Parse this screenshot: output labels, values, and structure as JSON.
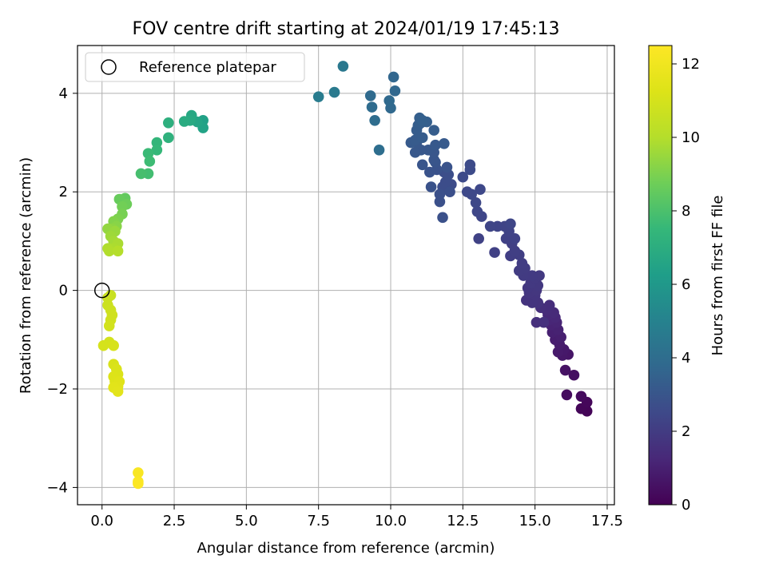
{
  "chart_data": {
    "type": "scatter",
    "title": "FOV centre drift starting at 2024/01/19 17:45:13",
    "xlabel": "Angular distance from reference (arcmin)",
    "ylabel": "Rotation from reference (arcmin)",
    "xlim": [
      -0.85,
      17.75
    ],
    "ylim": [
      -4.35,
      4.97
    ],
    "xticks": [
      0.0,
      2.5,
      5.0,
      7.5,
      10.0,
      12.5,
      15.0,
      17.5
    ],
    "xtick_labels": [
      "0.0",
      "2.5",
      "5.0",
      "7.5",
      "10.0",
      "12.5",
      "15.0",
      "17.5"
    ],
    "yticks": [
      -4,
      -2,
      0,
      2,
      4
    ],
    "ytick_labels": [
      "−4",
      "−2",
      "0",
      "2",
      "4"
    ],
    "grid": true,
    "legend": {
      "position": "top-left",
      "entries": [
        "Reference platepar"
      ]
    },
    "reference_point": {
      "x": 0.0,
      "y": 0.0
    },
    "colorbar": {
      "label": "Hours from first FF file",
      "colormap": "viridis",
      "range": [
        0,
        12.5
      ],
      "ticks": [
        0,
        2,
        4,
        6,
        8,
        10,
        12
      ],
      "tick_labels": [
        "0",
        "2",
        "4",
        "6",
        "8",
        "10",
        "12"
      ]
    },
    "points": [
      {
        "x": 16.8,
        "y": -2.45,
        "c": 0.1
      },
      {
        "x": 16.6,
        "y": -2.4,
        "c": 0.15
      },
      {
        "x": 16.8,
        "y": -2.27,
        "c": 0.2
      },
      {
        "x": 16.6,
        "y": -2.15,
        "c": 0.3
      },
      {
        "x": 16.1,
        "y": -2.12,
        "c": 0.35
      },
      {
        "x": 16.35,
        "y": -1.72,
        "c": 0.45
      },
      {
        "x": 16.05,
        "y": -1.62,
        "c": 0.55
      },
      {
        "x": 16.15,
        "y": -1.3,
        "c": 0.65
      },
      {
        "x": 15.95,
        "y": -1.32,
        "c": 0.7
      },
      {
        "x": 16.0,
        "y": -1.2,
        "c": 0.75
      },
      {
        "x": 15.8,
        "y": -1.25,
        "c": 0.8
      },
      {
        "x": 15.85,
        "y": -1.1,
        "c": 0.85
      },
      {
        "x": 15.7,
        "y": -1.0,
        "c": 0.9
      },
      {
        "x": 15.9,
        "y": -0.95,
        "c": 0.95
      },
      {
        "x": 15.6,
        "y": -0.85,
        "c": 1.0
      },
      {
        "x": 15.8,
        "y": -0.8,
        "c": 1.05
      },
      {
        "x": 15.55,
        "y": -0.7,
        "c": 1.1
      },
      {
        "x": 15.75,
        "y": -0.65,
        "c": 1.15
      },
      {
        "x": 15.5,
        "y": -0.6,
        "c": 1.2
      },
      {
        "x": 15.7,
        "y": -0.55,
        "c": 1.25
      },
      {
        "x": 15.45,
        "y": -0.5,
        "c": 1.3
      },
      {
        "x": 15.65,
        "y": -0.45,
        "c": 1.35
      },
      {
        "x": 15.4,
        "y": -0.4,
        "c": 1.4
      },
      {
        "x": 15.5,
        "y": -0.3,
        "c": 1.45
      },
      {
        "x": 15.2,
        "y": -0.35,
        "c": 1.5
      },
      {
        "x": 15.05,
        "y": -0.65,
        "c": 1.55
      },
      {
        "x": 15.3,
        "y": -0.65,
        "c": 1.6
      },
      {
        "x": 15.1,
        "y": -0.25,
        "c": 1.65
      },
      {
        "x": 14.9,
        "y": -0.25,
        "c": 1.7
      },
      {
        "x": 14.7,
        "y": -0.2,
        "c": 1.72
      },
      {
        "x": 15.0,
        "y": -0.1,
        "c": 1.75
      },
      {
        "x": 14.8,
        "y": -0.05,
        "c": 1.78
      },
      {
        "x": 15.05,
        "y": 0.0,
        "c": 1.8
      },
      {
        "x": 14.75,
        "y": 0.05,
        "c": 1.82
      },
      {
        "x": 15.1,
        "y": 0.1,
        "c": 1.85
      },
      {
        "x": 14.85,
        "y": 0.15,
        "c": 1.88
      },
      {
        "x": 15.0,
        "y": 0.25,
        "c": 1.9
      },
      {
        "x": 15.15,
        "y": 0.3,
        "c": 1.92
      },
      {
        "x": 14.9,
        "y": 0.3,
        "c": 1.95
      },
      {
        "x": 14.6,
        "y": 0.3,
        "c": 1.97
      },
      {
        "x": 14.45,
        "y": 0.4,
        "c": 2.0
      },
      {
        "x": 14.65,
        "y": 0.45,
        "c": 2.02
      },
      {
        "x": 14.55,
        "y": 0.55,
        "c": 2.05
      },
      {
        "x": 14.45,
        "y": 0.72,
        "c": 2.08
      },
      {
        "x": 14.15,
        "y": 0.7,
        "c": 2.1
      },
      {
        "x": 14.3,
        "y": 0.8,
        "c": 2.12
      },
      {
        "x": 14.2,
        "y": 0.95,
        "c": 2.15
      },
      {
        "x": 13.6,
        "y": 0.77,
        "c": 2.18
      },
      {
        "x": 14.0,
        "y": 1.05,
        "c": 2.2
      },
      {
        "x": 13.05,
        "y": 1.05,
        "c": 2.22
      },
      {
        "x": 14.3,
        "y": 1.05,
        "c": 2.25
      },
      {
        "x": 14.1,
        "y": 1.2,
        "c": 2.28
      },
      {
        "x": 13.95,
        "y": 1.3,
        "c": 2.3
      },
      {
        "x": 13.7,
        "y": 1.3,
        "c": 2.32
      },
      {
        "x": 13.45,
        "y": 1.3,
        "c": 2.35
      },
      {
        "x": 14.15,
        "y": 1.35,
        "c": 2.38
      },
      {
        "x": 13.15,
        "y": 1.5,
        "c": 2.4
      },
      {
        "x": 13.0,
        "y": 1.6,
        "c": 2.42
      },
      {
        "x": 12.95,
        "y": 1.78,
        "c": 2.45
      },
      {
        "x": 13.1,
        "y": 2.05,
        "c": 2.48
      },
      {
        "x": 12.8,
        "y": 1.95,
        "c": 2.5
      },
      {
        "x": 12.65,
        "y": 2.0,
        "c": 2.52
      },
      {
        "x": 12.5,
        "y": 2.3,
        "c": 2.55
      },
      {
        "x": 12.75,
        "y": 2.45,
        "c": 2.58
      },
      {
        "x": 12.75,
        "y": 2.55,
        "c": 2.6
      },
      {
        "x": 12.1,
        "y": 2.15,
        "c": 2.62
      },
      {
        "x": 11.9,
        "y": 2.2,
        "c": 2.65
      },
      {
        "x": 11.8,
        "y": 2.1,
        "c": 2.68
      },
      {
        "x": 12.0,
        "y": 2.35,
        "c": 2.7
      },
      {
        "x": 11.85,
        "y": 2.4,
        "c": 2.72
      },
      {
        "x": 12.05,
        "y": 2.0,
        "c": 2.75
      },
      {
        "x": 11.7,
        "y": 1.95,
        "c": 2.78
      },
      {
        "x": 11.7,
        "y": 1.8,
        "c": 2.8
      },
      {
        "x": 11.8,
        "y": 1.48,
        "c": 2.82
      },
      {
        "x": 11.4,
        "y": 2.1,
        "c": 2.85
      },
      {
        "x": 11.6,
        "y": 2.45,
        "c": 2.88
      },
      {
        "x": 11.35,
        "y": 2.4,
        "c": 2.9
      },
      {
        "x": 11.95,
        "y": 2.5,
        "c": 2.92
      },
      {
        "x": 11.55,
        "y": 2.6,
        "c": 2.95
      },
      {
        "x": 11.1,
        "y": 2.55,
        "c": 2.98
      },
      {
        "x": 11.5,
        "y": 2.65,
        "c": 3.0
      },
      {
        "x": 11.5,
        "y": 2.8,
        "c": 3.02
      },
      {
        "x": 11.3,
        "y": 2.85,
        "c": 3.05
      },
      {
        "x": 11.05,
        "y": 2.85,
        "c": 3.08
      },
      {
        "x": 10.85,
        "y": 2.8,
        "c": 3.1
      },
      {
        "x": 10.9,
        "y": 3.0,
        "c": 3.12
      },
      {
        "x": 11.55,
        "y": 2.95,
        "c": 3.15
      },
      {
        "x": 11.85,
        "y": 2.98,
        "c": 3.18
      },
      {
        "x": 10.7,
        "y": 3.0,
        "c": 3.2
      },
      {
        "x": 10.85,
        "y": 3.05,
        "c": 3.22
      },
      {
        "x": 11.1,
        "y": 3.1,
        "c": 3.25
      },
      {
        "x": 10.9,
        "y": 3.25,
        "c": 3.28
      },
      {
        "x": 11.5,
        "y": 3.25,
        "c": 3.3
      },
      {
        "x": 10.95,
        "y": 3.35,
        "c": 3.32
      },
      {
        "x": 11.05,
        "y": 3.4,
        "c": 3.35
      },
      {
        "x": 11.25,
        "y": 3.42,
        "c": 3.38
      },
      {
        "x": 11.0,
        "y": 3.5,
        "c": 3.4
      },
      {
        "x": 11.1,
        "y": 3.45,
        "c": 3.42
      },
      {
        "x": 10.1,
        "y": 4.33,
        "c": 3.7
      },
      {
        "x": 10.15,
        "y": 4.05,
        "c": 3.75
      },
      {
        "x": 10.0,
        "y": 3.7,
        "c": 3.8
      },
      {
        "x": 9.95,
        "y": 3.85,
        "c": 3.85
      },
      {
        "x": 9.3,
        "y": 3.95,
        "c": 3.9
      },
      {
        "x": 9.35,
        "y": 3.72,
        "c": 3.95
      },
      {
        "x": 9.45,
        "y": 3.45,
        "c": 4.0
      },
      {
        "x": 9.6,
        "y": 2.85,
        "c": 4.05
      },
      {
        "x": 8.35,
        "y": 4.55,
        "c": 4.5
      },
      {
        "x": 8.05,
        "y": 4.02,
        "c": 4.6
      },
      {
        "x": 7.5,
        "y": 3.93,
        "c": 4.7
      },
      {
        "x": 3.5,
        "y": 3.45,
        "c": 6.4
      },
      {
        "x": 3.5,
        "y": 3.3,
        "c": 6.5
      },
      {
        "x": 3.3,
        "y": 3.42,
        "c": 6.6
      },
      {
        "x": 3.1,
        "y": 3.55,
        "c": 6.7
      },
      {
        "x": 3.05,
        "y": 3.45,
        "c": 6.8
      },
      {
        "x": 2.85,
        "y": 3.43,
        "c": 6.9
      },
      {
        "x": 2.3,
        "y": 3.4,
        "c": 7.1
      },
      {
        "x": 2.3,
        "y": 3.1,
        "c": 7.2
      },
      {
        "x": 1.9,
        "y": 3.0,
        "c": 7.4
      },
      {
        "x": 1.9,
        "y": 2.85,
        "c": 7.5
      },
      {
        "x": 1.6,
        "y": 2.78,
        "c": 7.6
      },
      {
        "x": 1.65,
        "y": 2.62,
        "c": 7.7
      },
      {
        "x": 1.6,
        "y": 2.37,
        "c": 7.8
      },
      {
        "x": 1.35,
        "y": 2.37,
        "c": 7.9
      },
      {
        "x": 0.8,
        "y": 1.87,
        "c": 8.5
      },
      {
        "x": 0.6,
        "y": 1.85,
        "c": 8.6
      },
      {
        "x": 0.85,
        "y": 1.75,
        "c": 8.7
      },
      {
        "x": 0.7,
        "y": 1.7,
        "c": 8.8
      },
      {
        "x": 0.7,
        "y": 1.55,
        "c": 8.9
      },
      {
        "x": 0.55,
        "y": 1.45,
        "c": 9.0
      },
      {
        "x": 0.4,
        "y": 1.4,
        "c": 9.1
      },
      {
        "x": 0.5,
        "y": 1.3,
        "c": 9.2
      },
      {
        "x": 0.35,
        "y": 1.25,
        "c": 9.3
      },
      {
        "x": 0.2,
        "y": 1.25,
        "c": 9.4
      },
      {
        "x": 0.45,
        "y": 1.2,
        "c": 9.5
      },
      {
        "x": 0.3,
        "y": 1.1,
        "c": 9.6
      },
      {
        "x": 0.4,
        "y": 1.0,
        "c": 9.7
      },
      {
        "x": 0.55,
        "y": 0.95,
        "c": 9.8
      },
      {
        "x": 0.4,
        "y": 0.85,
        "c": 9.85
      },
      {
        "x": 0.2,
        "y": 0.85,
        "c": 9.9
      },
      {
        "x": 0.25,
        "y": 0.8,
        "c": 9.95
      },
      {
        "x": 0.55,
        "y": 0.8,
        "c": 10.0
      },
      {
        "x": 0.3,
        "y": -0.1,
        "c": 10.6
      },
      {
        "x": 0.2,
        "y": -0.15,
        "c": 10.65
      },
      {
        "x": 0.2,
        "y": -0.3,
        "c": 10.7
      },
      {
        "x": 0.3,
        "y": -0.4,
        "c": 10.75
      },
      {
        "x": 0.35,
        "y": -0.5,
        "c": 10.8
      },
      {
        "x": 0.3,
        "y": -0.6,
        "c": 10.85
      },
      {
        "x": 0.25,
        "y": -0.72,
        "c": 10.9
      },
      {
        "x": 0.25,
        "y": -1.05,
        "c": 10.95
      },
      {
        "x": 0.05,
        "y": -1.12,
        "c": 11.0
      },
      {
        "x": 0.4,
        "y": -1.12,
        "c": 11.05
      },
      {
        "x": 0.4,
        "y": -1.5,
        "c": 11.1
      },
      {
        "x": 0.5,
        "y": -1.6,
        "c": 11.15
      },
      {
        "x": 0.55,
        "y": -1.7,
        "c": 11.2
      },
      {
        "x": 0.4,
        "y": -1.75,
        "c": 11.25
      },
      {
        "x": 0.45,
        "y": -1.85,
        "c": 11.3
      },
      {
        "x": 0.6,
        "y": -1.85,
        "c": 11.35
      },
      {
        "x": 0.55,
        "y": -1.95,
        "c": 11.4
      },
      {
        "x": 0.4,
        "y": -1.97,
        "c": 11.45
      },
      {
        "x": 0.55,
        "y": -2.05,
        "c": 11.5
      },
      {
        "x": 1.25,
        "y": -3.7,
        "c": 12.3
      },
      {
        "x": 1.25,
        "y": -3.88,
        "c": 12.4
      },
      {
        "x": 1.25,
        "y": -3.92,
        "c": 12.45
      }
    ]
  }
}
